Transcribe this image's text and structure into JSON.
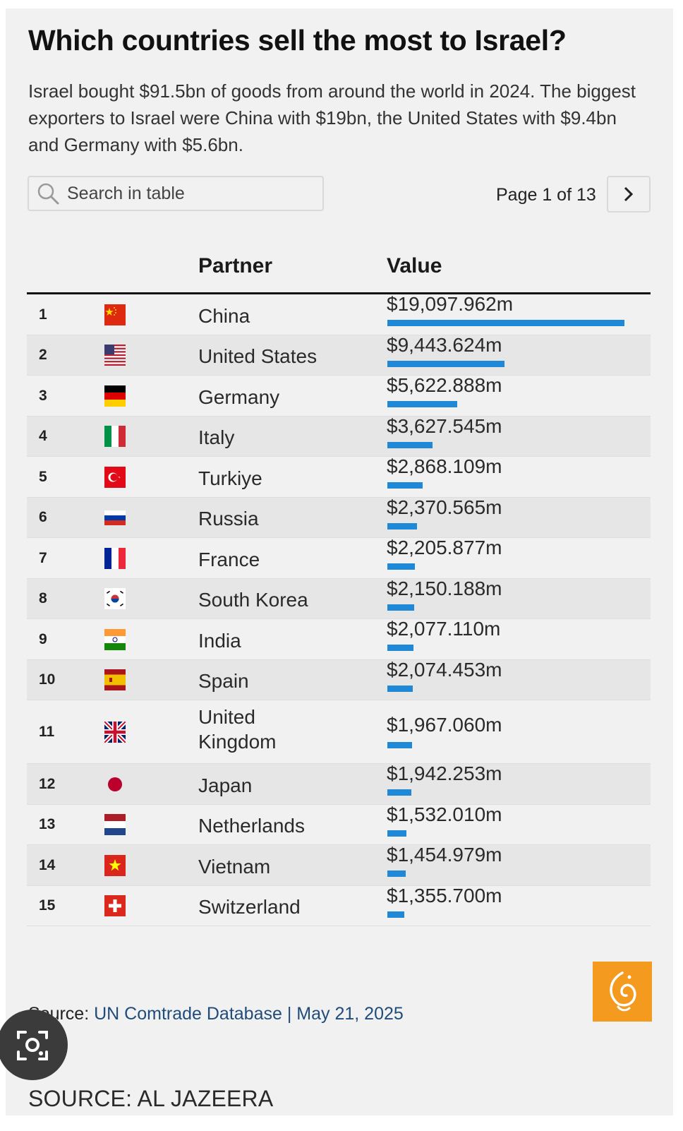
{
  "header": {
    "title": "Which countries sell the most to Israel?",
    "subtitle": "Israel bought $91.5bn of goods from around the world in 2024. The biggest exporters to Israel were China with $19bn, the United States with $9.4bn and Germany with $5.6bn."
  },
  "search": {
    "placeholder": "Search in table"
  },
  "pager": {
    "label": "Page 1 of 13"
  },
  "table": {
    "columns": {
      "partner": "Partner",
      "value": "Value"
    }
  },
  "chart_data": {
    "type": "bar",
    "orientation": "horizontal",
    "columns": [
      "Partner",
      "Value"
    ],
    "bar_color": "#1f88d7",
    "rows": [
      {
        "rank": "1",
        "country": "China",
        "value": 19097.962,
        "value_label": "$19,097.962m",
        "flag": "china-flag-icon"
      },
      {
        "rank": "2",
        "country": "United States",
        "value": 9443.624,
        "value_label": "$9,443.624m",
        "flag": "usa-flag-icon"
      },
      {
        "rank": "3",
        "country": "Germany",
        "value": 5622.888,
        "value_label": "$5,622.888m",
        "flag": "germany-flag-icon"
      },
      {
        "rank": "4",
        "country": "Italy",
        "value": 3627.545,
        "value_label": "$3,627.545m",
        "flag": "italy-flag-icon"
      },
      {
        "rank": "5",
        "country": "Turkiye",
        "value": 2868.109,
        "value_label": "$2,868.109m",
        "flag": "turkiye-flag-icon"
      },
      {
        "rank": "6",
        "country": "Russia",
        "value": 2370.565,
        "value_label": "$2,370.565m",
        "flag": "russia-flag-icon"
      },
      {
        "rank": "7",
        "country": "France",
        "value": 2205.877,
        "value_label": "$2,205.877m",
        "flag": "france-flag-icon"
      },
      {
        "rank": "8",
        "country": "South Korea",
        "value": 2150.188,
        "value_label": "$2,150.188m",
        "flag": "south-korea-flag-icon"
      },
      {
        "rank": "9",
        "country": "India",
        "value": 2077.11,
        "value_label": "$2,077.110m",
        "flag": "india-flag-icon"
      },
      {
        "rank": "10",
        "country": "Spain",
        "value": 2074.453,
        "value_label": "$2,074.453m",
        "flag": "spain-flag-icon"
      },
      {
        "rank": "11",
        "country": "United Kingdom",
        "value": 1967.06,
        "value_label": "$1,967.060m",
        "flag": "uk-flag-icon"
      },
      {
        "rank": "12",
        "country": "Japan",
        "value": 1942.253,
        "value_label": "$1,942.253m",
        "flag": "japan-flag-icon"
      },
      {
        "rank": "13",
        "country": "Netherlands",
        "value": 1532.01,
        "value_label": "$1,532.010m",
        "flag": "netherlands-flag-icon"
      },
      {
        "rank": "14",
        "country": "Vietnam",
        "value": 1454.979,
        "value_label": "$1,454.979m",
        "flag": "vietnam-flag-icon"
      },
      {
        "rank": "15",
        "country": "Switzerland",
        "value": 1355.7,
        "value_label": "$1,355.700m",
        "flag": "switzerland-flag-icon"
      }
    ]
  },
  "source": {
    "prefix": "Source: ",
    "link_text": "UN Comtrade Database",
    "date": " | May 21, 2025"
  },
  "footer": {
    "text": "SOURCE: AL JAZEERA"
  },
  "colors": {
    "accent": "#1f88d7",
    "logo": "#f39a1f",
    "background": "#f1f1f1"
  }
}
